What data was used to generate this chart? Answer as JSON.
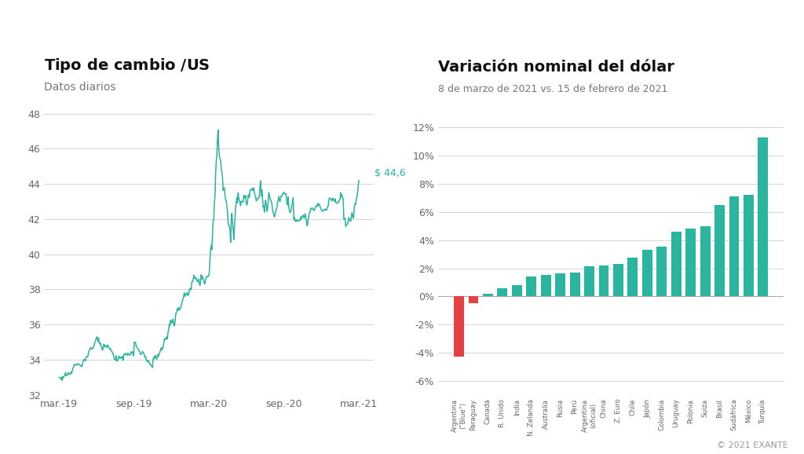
{
  "left_title": "Tipo de cambio $/US$",
  "left_subtitle": "Datos diarios",
  "left_annotation": "$ 44,6",
  "left_ylim": [
    32,
    48
  ],
  "left_yticks": [
    32,
    34,
    36,
    38,
    40,
    42,
    44,
    46,
    48
  ],
  "left_xtick_labels": [
    "mar.-19",
    "sep.-19",
    "mar.-20",
    "sep.-20",
    "mar.-21"
  ],
  "line_color": "#2ab5a0",
  "annotation_color": "#2ab5a0",
  "right_title": "Variación nominal del dólar",
  "right_subtitle": "8 de marzo de 2021 vs. 15 de febrero de 2021",
  "right_ylim": [
    -0.07,
    0.13
  ],
  "right_yticks": [
    -0.06,
    -0.04,
    -0.02,
    0.0,
    0.02,
    0.04,
    0.06,
    0.08,
    0.1,
    0.12
  ],
  "right_ytick_labels": [
    "-6%",
    "-4%",
    "-2%",
    "0%",
    "2%",
    "4%",
    "6%",
    "8%",
    "10%",
    "12%"
  ],
  "bar_categories": [
    "Argentina\n(\"Blue\")",
    "Paraguay",
    "Canadá",
    "R. Unido",
    "India",
    "N. Zelanda",
    "Australia",
    "Rusia",
    "Perú",
    "Argentina\n(oficial)",
    "China",
    "Z. Euro",
    "Chile",
    "Japón",
    "Colombia",
    "Uruguay",
    "Polonia",
    "Suiza",
    "Brasil",
    "Sudáfrica",
    "México",
    "Turquía"
  ],
  "bar_values": [
    -4.3,
    -0.5,
    0.2,
    0.6,
    0.8,
    1.4,
    1.55,
    1.65,
    1.7,
    2.15,
    2.2,
    2.3,
    2.75,
    3.3,
    3.55,
    4.6,
    4.85,
    5.0,
    6.5,
    7.1,
    7.2,
    11.3
  ],
  "bar_colors_teal": "#2ab5a0",
  "bar_colors_red": "#e84040",
  "background_color": "#ffffff",
  "grid_color": "#d5d5d5",
  "copyright_text": "© 2021 EXANTE",
  "title_fontsize": 14,
  "subtitle_fontsize": 10,
  "axis_fontsize": 9
}
